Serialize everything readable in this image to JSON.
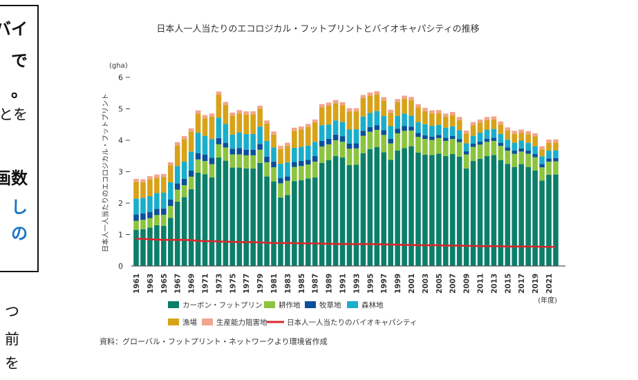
{
  "left_fragments": {
    "boxed": [
      "バイ",
      "で",
      "。",
      "とを",
      "画数",
      "し",
      "の"
    ],
    "below": [
      "つ",
      "前",
      "を"
    ]
  },
  "colors": {
    "carbon": "#0b7f69",
    "cropland": "#8cc43f",
    "grazing": "#0c4f9a",
    "forest": "#1aaecb",
    "fishing": "#d8a219",
    "built_up": "#f2a58b",
    "biocapacity": "#d9262b"
  },
  "chart_data": {
    "type": "bar",
    "stacked": true,
    "title": "日本人一人当たりのエコロジカル・フットプリントとバイオキャパシティの推移",
    "ylabel": "日本人一人当たりのエコロジカル・フットプリント",
    "yunit": "(gha)",
    "xunit": "(年度)",
    "ylim": [
      0,
      6
    ],
    "yticks": [
      "0",
      "1",
      "2",
      "3",
      "4",
      "5",
      "6"
    ],
    "grid": false,
    "legend_placement": "bottom",
    "source": "資料：グローバル・フットプリント・ネットワークより環境省作成",
    "x": [
      1961,
      1962,
      1963,
      1964,
      1965,
      1966,
      1967,
      1968,
      1969,
      1970,
      1971,
      1972,
      1973,
      1974,
      1975,
      1976,
      1977,
      1978,
      1979,
      1980,
      1981,
      1982,
      1983,
      1984,
      1985,
      1986,
      1987,
      1988,
      1989,
      1990,
      1991,
      1992,
      1993,
      1994,
      1995,
      1996,
      1997,
      1998,
      1999,
      2000,
      2001,
      2002,
      2003,
      2004,
      2005,
      2006,
      2007,
      2008,
      2009,
      2010,
      2011,
      2012,
      2013,
      2014,
      2015,
      2016,
      2017,
      2018,
      2019,
      2020,
      2021,
      2022
    ],
    "xtick_labels": [
      "1961",
      "1963",
      "1965",
      "1967",
      "1969",
      "1971",
      "1973",
      "1975",
      "1977",
      "1979",
      "1981",
      "1983",
      "1985",
      "1987",
      "1989",
      "1991",
      "1993",
      "1995",
      "1997",
      "1999",
      "2001",
      "2003",
      "2005",
      "2007",
      "2009",
      "2011",
      "2013",
      "2015",
      "2017",
      "2019",
      "2021"
    ],
    "series": [
      {
        "name": "カーボン・フットプリント",
        "key": "carbon",
        "values": [
          1.15,
          1.17,
          1.22,
          1.3,
          1.28,
          1.53,
          2.05,
          2.19,
          2.44,
          2.97,
          2.92,
          2.82,
          3.45,
          3.35,
          3.13,
          3.13,
          3.1,
          3.1,
          3.28,
          2.85,
          2.69,
          2.18,
          2.26,
          2.7,
          2.73,
          2.78,
          2.82,
          3.28,
          3.37,
          3.5,
          3.45,
          3.21,
          3.22,
          3.59,
          3.72,
          3.78,
          3.62,
          3.38,
          3.67,
          3.75,
          3.81,
          3.61,
          3.54,
          3.53,
          3.57,
          3.5,
          3.56,
          3.48,
          3.1,
          3.34,
          3.41,
          3.5,
          3.53,
          3.37,
          3.25,
          3.15,
          3.24,
          3.15,
          3.04,
          2.72,
          2.9,
          2.91
        ]
      },
      {
        "name": "耕作地",
        "key": "cropland",
        "values": [
          0.29,
          0.3,
          0.3,
          0.32,
          0.35,
          0.38,
          0.38,
          0.38,
          0.4,
          0.42,
          0.42,
          0.42,
          0.42,
          0.42,
          0.42,
          0.42,
          0.42,
          0.42,
          0.42,
          0.45,
          0.45,
          0.45,
          0.45,
          0.45,
          0.45,
          0.45,
          0.5,
          0.52,
          0.5,
          0.5,
          0.5,
          0.52,
          0.52,
          0.55,
          0.55,
          0.55,
          0.55,
          0.52,
          0.55,
          0.55,
          0.5,
          0.5,
          0.5,
          0.48,
          0.5,
          0.48,
          0.48,
          0.46,
          0.45,
          0.45,
          0.45,
          0.45,
          0.45,
          0.45,
          0.42,
          0.42,
          0.4,
          0.42,
          0.42,
          0.42,
          0.42,
          0.42
        ]
      },
      {
        "name": "牧草地",
        "key": "grazing",
        "values": [
          0.2,
          0.2,
          0.2,
          0.2,
          0.2,
          0.2,
          0.2,
          0.2,
          0.2,
          0.2,
          0.2,
          0.2,
          0.2,
          0.15,
          0.18,
          0.2,
          0.18,
          0.18,
          0.18,
          0.18,
          0.18,
          0.17,
          0.14,
          0.16,
          0.16,
          0.15,
          0.18,
          0.18,
          0.18,
          0.18,
          0.18,
          0.16,
          0.16,
          0.16,
          0.15,
          0.15,
          0.15,
          0.15,
          0.15,
          0.15,
          0.12,
          0.12,
          0.12,
          0.1,
          0.1,
          0.1,
          0.1,
          0.1,
          0.1,
          0.1,
          0.1,
          0.1,
          0.1,
          0.1,
          0.1,
          0.1,
          0.1,
          0.1,
          0.1,
          0.1,
          0.1,
          0.1
        ]
      },
      {
        "name": "森林地",
        "key": "forest",
        "values": [
          0.5,
          0.5,
          0.5,
          0.5,
          0.5,
          0.55,
          0.55,
          0.55,
          0.6,
          0.65,
          0.6,
          0.6,
          0.65,
          0.6,
          0.45,
          0.5,
          0.5,
          0.5,
          0.55,
          0.5,
          0.45,
          0.45,
          0.45,
          0.45,
          0.45,
          0.45,
          0.45,
          0.5,
          0.45,
          0.45,
          0.45,
          0.45,
          0.45,
          0.45,
          0.45,
          0.45,
          0.45,
          0.4,
          0.4,
          0.4,
          0.35,
          0.35,
          0.35,
          0.35,
          0.32,
          0.32,
          0.3,
          0.28,
          0.25,
          0.25,
          0.28,
          0.28,
          0.28,
          0.28,
          0.25,
          0.25,
          0.25,
          0.25,
          0.25,
          0.25,
          0.25,
          0.25
        ]
      },
      {
        "name": "漁場",
        "key": "fishing",
        "values": [
          0.53,
          0.49,
          0.54,
          0.49,
          0.5,
          0.54,
          0.66,
          0.71,
          0.64,
          0.61,
          0.56,
          0.71,
          0.73,
          0.6,
          0.6,
          0.61,
          0.62,
          0.62,
          0.57,
          0.55,
          0.41,
          0.47,
          0.52,
          0.54,
          0.55,
          0.59,
          0.61,
          0.57,
          0.6,
          0.55,
          0.53,
          0.58,
          0.57,
          0.59,
          0.55,
          0.53,
          0.5,
          0.42,
          0.44,
          0.47,
          0.5,
          0.47,
          0.42,
          0.39,
          0.37,
          0.35,
          0.36,
          0.32,
          0.31,
          0.34,
          0.32,
          0.31,
          0.3,
          0.3,
          0.29,
          0.28,
          0.25,
          0.27,
          0.31,
          0.22,
          0.25,
          0.25
        ]
      },
      {
        "name": "生産能力阻害地",
        "key": "built_up",
        "values": [
          0.1,
          0.1,
          0.1,
          0.1,
          0.1,
          0.1,
          0.1,
          0.1,
          0.1,
          0.1,
          0.1,
          0.1,
          0.1,
          0.1,
          0.1,
          0.1,
          0.1,
          0.1,
          0.1,
          0.1,
          0.1,
          0.1,
          0.1,
          0.1,
          0.1,
          0.1,
          0.1,
          0.1,
          0.1,
          0.1,
          0.1,
          0.1,
          0.1,
          0.1,
          0.1,
          0.1,
          0.1,
          0.1,
          0.1,
          0.1,
          0.1,
          0.1,
          0.1,
          0.1,
          0.1,
          0.1,
          0.1,
          0.1,
          0.1,
          0.1,
          0.1,
          0.1,
          0.1,
          0.1,
          0.1,
          0.1,
          0.1,
          0.1,
          0.1,
          0.1,
          0.1,
          0.1
        ]
      }
    ],
    "line": {
      "name": "日本人一人当たりのバイオキャパシティ",
      "key": "biocapacity",
      "values": [
        0.87,
        0.86,
        0.85,
        0.84,
        0.83,
        0.83,
        0.83,
        0.83,
        0.82,
        0.8,
        0.79,
        0.79,
        0.78,
        0.77,
        0.77,
        0.76,
        0.76,
        0.76,
        0.75,
        0.74,
        0.73,
        0.73,
        0.73,
        0.73,
        0.72,
        0.72,
        0.72,
        0.71,
        0.71,
        0.7,
        0.7,
        0.7,
        0.69,
        0.7,
        0.7,
        0.69,
        0.69,
        0.68,
        0.68,
        0.67,
        0.67,
        0.66,
        0.66,
        0.66,
        0.66,
        0.65,
        0.65,
        0.65,
        0.64,
        0.64,
        0.63,
        0.63,
        0.63,
        0.63,
        0.62,
        0.62,
        0.62,
        0.62,
        0.62,
        0.61,
        0.61,
        0.61
      ]
    }
  }
}
